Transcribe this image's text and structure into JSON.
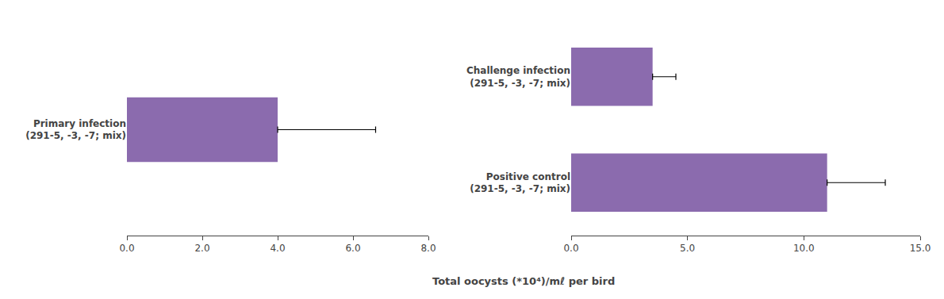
{
  "chart_data": [
    {
      "type": "bar",
      "orientation": "horizontal",
      "grid": false,
      "color": "#8B6BAE",
      "categories": [
        "Primary infection\n(291-5, -3, -7; mix)"
      ],
      "values": [
        4.0
      ],
      "errors": [
        2.6
      ],
      "xlim": [
        0,
        8.0
      ],
      "xticks": [
        {
          "value": 0.0,
          "label": "0.0"
        },
        {
          "value": 2.0,
          "label": "2.0"
        },
        {
          "value": 4.0,
          "label": "4.0"
        },
        {
          "value": 6.0,
          "label": "6.0"
        },
        {
          "value": 8.0,
          "label": "8.0"
        }
      ]
    },
    {
      "type": "bar",
      "orientation": "horizontal",
      "grid": false,
      "color": "#8B6BAE",
      "categories": [
        "Challenge infection\n(291-5, -3, -7; mix)",
        "Positive control\n(291-5, -3, -7; mix)"
      ],
      "values": [
        3.5,
        11.0
      ],
      "errors": [
        1.0,
        2.5
      ],
      "xlim": [
        0,
        15.0
      ],
      "xticks": [
        {
          "value": 0.0,
          "label": "0.0"
        },
        {
          "value": 5.0,
          "label": "5.0"
        },
        {
          "value": 10.0,
          "label": "10.0"
        },
        {
          "value": 15.0,
          "label": "15.0"
        }
      ]
    }
  ],
  "xlabel": "Total oocysts (*10⁴)/mℓ per bird"
}
